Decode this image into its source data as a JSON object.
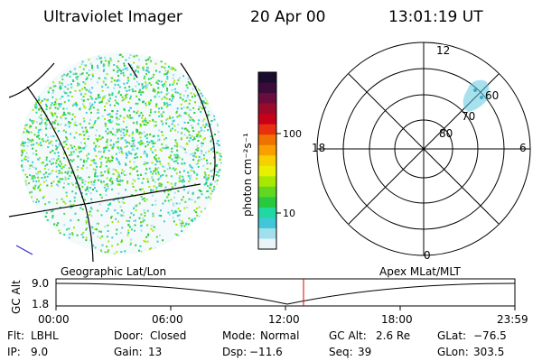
{
  "header": {
    "instrument": "Ultraviolet Imager",
    "date": "20 Apr 00",
    "time": "13:01:19 UT"
  },
  "colorbar": {
    "unit_label": "photon cm⁻²s⁻¹",
    "ticks": [
      "100",
      "10"
    ],
    "colors": [
      "#1a0c2e",
      "#3b0b3a",
      "#6a0c3e",
      "#9b0a2a",
      "#c8001a",
      "#e83010",
      "#f07000",
      "#f8a000",
      "#f8d000",
      "#e8f000",
      "#a8e800",
      "#60d820",
      "#28c840",
      "#20d8a0",
      "#40c8d8",
      "#a0e0ec",
      "#e8f4f8"
    ]
  },
  "polar_plot": {
    "ring_labels": [
      "80",
      "70",
      "60"
    ],
    "mlt_labels": {
      "top": "12",
      "left": "18",
      "right": "6",
      "bottom": "0"
    },
    "accent": "#60c8e0"
  },
  "timeline": {
    "left_title": "Geographic Lat/Lon",
    "right_title": "Apex MLat/MLT",
    "axis_title": "GC Alt",
    "y_ticks": [
      "9.0",
      "1.8"
    ],
    "x_ticks": [
      "00:00",
      "06:00",
      "12:00",
      "18:00",
      "23:59"
    ],
    "marker_color": "#e00000"
  },
  "info": {
    "flt": {
      "label": "Flt:",
      "value": "LBHL"
    },
    "ip": {
      "label": "IP:",
      "value": "9.0"
    },
    "door": {
      "label": "Door:",
      "value": "Closed"
    },
    "gain": {
      "label": "Gain:",
      "value": "13"
    },
    "mode": {
      "label": "Mode:",
      "value": "Normal"
    },
    "dsp": {
      "label": "Dsp:",
      "value": "−11.6"
    },
    "gcalt": {
      "label": "GC Alt:",
      "value": "2.6 Re"
    },
    "seq": {
      "label": "Seq:",
      "value": "39"
    },
    "glat": {
      "label": "GLat:",
      "value": "−76.5"
    },
    "glon": {
      "label": "GLon:",
      "value": "303.5"
    }
  }
}
